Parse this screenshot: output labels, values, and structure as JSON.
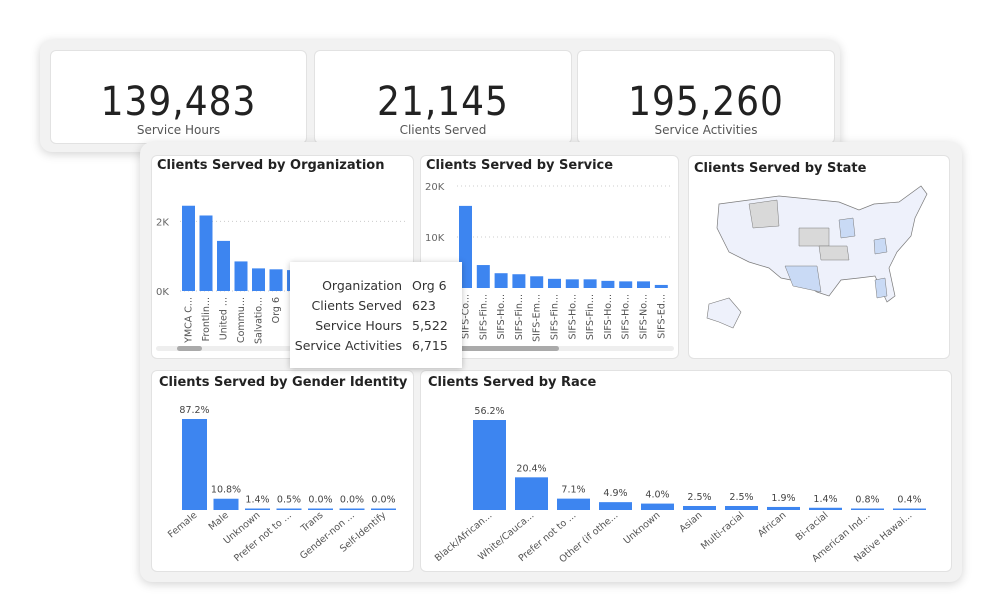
{
  "kpis": [
    {
      "value": "139,483",
      "label": "Service Hours"
    },
    {
      "value": "21,145",
      "label": "Clients Served"
    },
    {
      "value": "195,260",
      "label": "Service Activities"
    }
  ],
  "colors": {
    "bar": "#3d85f0",
    "map_highlight": "#c9daf5",
    "map_base": "#eef1fb",
    "map_gray": "#d9d9d9"
  },
  "state_chart": {
    "title": "Clients Served by State"
  },
  "tooltip": {
    "rows": [
      {
        "key": "Organization",
        "value": "Org 6"
      },
      {
        "key": "Clients Served",
        "value": "623"
      },
      {
        "key": "Service Hours",
        "value": "5,522"
      },
      {
        "key": "Service Activities",
        "value": "6,715"
      }
    ]
  },
  "chart_data": [
    {
      "type": "bar",
      "title": "Clients Served by Organization",
      "categories": [
        "YMCA C...",
        "Frontlin...",
        "United ...",
        "Commu...",
        "Salvatio...",
        "Org 6",
        "..."
      ],
      "values": [
        2450,
        2170,
        1440,
        850,
        650,
        623,
        600
      ],
      "ylim": [
        0,
        2500
      ],
      "yticks": [
        "0K",
        "2K"
      ],
      "ytickvals": [
        0,
        2000
      ],
      "grid": true,
      "label_rotation": -90
    },
    {
      "type": "bar",
      "title": "Clients Served by Service",
      "categories": [
        "SIFS-Co...",
        "SIFS-Fin...",
        "SIFS-Ho...",
        "SIFS-Fin...",
        "SIFS-Em...",
        "SIFS-Fin...",
        "SIFS-Ho...",
        "SIFS-Fin...",
        "SIFS-Ho...",
        "SIFS-Ho...",
        "SIFS-No...",
        "SIFS-Ed..."
      ],
      "values": [
        16100,
        4500,
        2900,
        2700,
        2300,
        1800,
        1700,
        1700,
        1400,
        1300,
        1300,
        600
      ],
      "ylim": [
        0,
        20000
      ],
      "yticks": [
        "20K",
        "10K"
      ],
      "ytickvals": [
        20000,
        10000
      ],
      "grid": true,
      "label_rotation": -90
    },
    {
      "type": "bar",
      "title": "Clients Served by Gender Identity",
      "categories": [
        "Female",
        "Male",
        "Unknown",
        "Prefer not to ...",
        "Trans",
        "Gender-non ...",
        "Self-Identify"
      ],
      "values": [
        87.2,
        10.8,
        1.4,
        0.5,
        0.0,
        0.0,
        0.0
      ],
      "data_labels": [
        "87.2%",
        "10.8%",
        "1.4%",
        "0.5%",
        "0.0%",
        "0.0%",
        "0.0%"
      ],
      "ylim": [
        0,
        87.2
      ],
      "label_rotation": -40
    },
    {
      "type": "bar",
      "title": "Clients Served by Race",
      "categories": [
        "Black/African...",
        "White/Cauca...",
        "Prefer not to ...",
        "Other (if othe...",
        "Unknown",
        "Asian",
        "Multi-racial",
        "African",
        "Bi-racial",
        "American Ind...",
        "Native Hawai..."
      ],
      "values": [
        56.2,
        20.4,
        7.1,
        4.9,
        4.0,
        2.5,
        2.5,
        1.9,
        1.4,
        0.8,
        0.4
      ],
      "data_labels": [
        "56.2%",
        "20.4%",
        "7.1%",
        "4.9%",
        "4.0%",
        "2.5%",
        "2.5%",
        "1.9%",
        "1.4%",
        "0.8%",
        "0.4%"
      ],
      "ylim": [
        0,
        56.2
      ],
      "label_rotation": -40
    }
  ]
}
